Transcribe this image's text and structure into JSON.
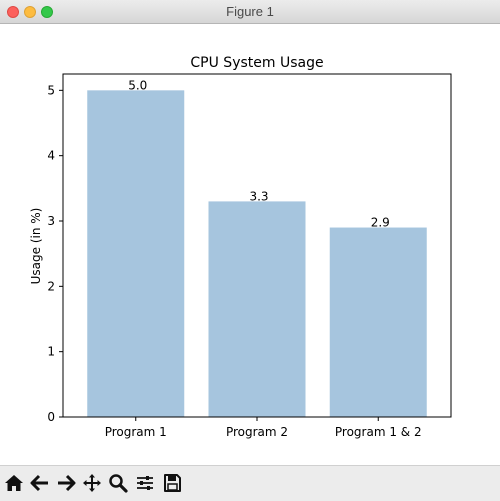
{
  "window": {
    "title": "Figure 1"
  },
  "chart_data": {
    "type": "bar",
    "title": "CPU System Usage",
    "xlabel": "",
    "ylabel": "Usage (in %)",
    "categories": [
      "Program 1",
      "Program 2",
      "Program  1 & 2"
    ],
    "values": [
      5.0,
      3.3,
      2.9
    ],
    "data_labels": [
      "5.0",
      "3.3",
      "2.9"
    ],
    "ylim": [
      0,
      5.25
    ],
    "yticks": [
      0,
      1,
      2,
      3,
      4,
      5
    ],
    "grid": false,
    "bar_color": "#a6c5de"
  },
  "toolbar": {
    "icons": [
      "home-icon",
      "back-arrow-icon",
      "forward-arrow-icon",
      "pan-icon",
      "zoom-icon",
      "configure-icon",
      "save-icon"
    ]
  }
}
